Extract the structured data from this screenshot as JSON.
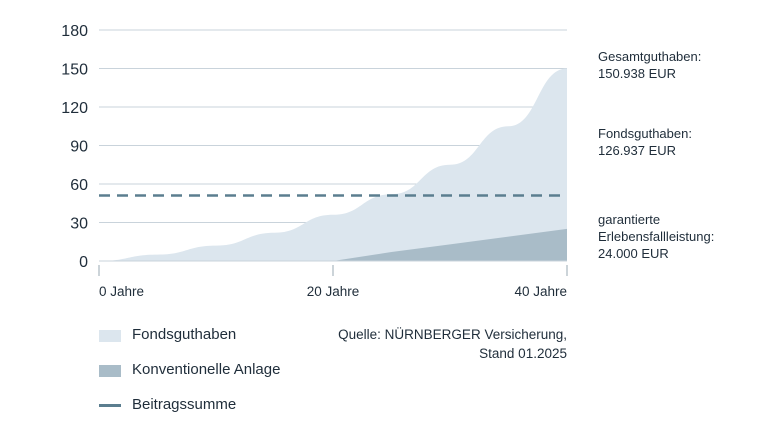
{
  "chart_data": {
    "type": "area",
    "ylim": [
      0,
      180
    ],
    "yticks": [
      0,
      30,
      60,
      90,
      120,
      150,
      180
    ],
    "xlim": [
      0,
      40
    ],
    "xticks": [
      {
        "value": 0,
        "label": "0 Jahre"
      },
      {
        "value": 20,
        "label": "20 Jahre"
      },
      {
        "value": 40,
        "label": "40 Jahre"
      }
    ],
    "grid": true,
    "series": [
      {
        "name": "Fondsguthaben",
        "type": "area",
        "color": "#dce6ee",
        "x": [
          0,
          5,
          10,
          15,
          20,
          25,
          30,
          35,
          40
        ],
        "values": [
          0,
          5,
          12,
          22,
          36,
          52,
          75,
          105,
          150
        ]
      },
      {
        "name": "Konventionelle Anlage",
        "type": "area",
        "color": "#a9bcc8",
        "x": [
          0,
          20,
          25,
          30,
          35,
          40
        ],
        "values": [
          0,
          0,
          7,
          13,
          19,
          25
        ]
      },
      {
        "name": "Beitragssumme",
        "type": "dashed-line",
        "color": "#5b7e8f",
        "x": [
          0,
          40
        ],
        "values": [
          51,
          51
        ]
      }
    ]
  },
  "annotations": [
    {
      "label": "Gesamtguthaben:",
      "value": "150.938 EUR"
    },
    {
      "label": "Fondsguthaben:",
      "value": "126.937 EUR"
    },
    {
      "label": "garantierte",
      "label2": "Erlebensfallleistung:",
      "value": "24.000 EUR"
    }
  ],
  "legend": [
    {
      "label": "Fondsguthaben",
      "color": "#dce6ee"
    },
    {
      "label": "Konventionelle Anlage",
      "color": "#a9bcc8"
    },
    {
      "label": "Beitragssumme",
      "color": "#5b7e8f"
    }
  ],
  "source": {
    "line1": "Quelle: NÜRNBERGER Versicherung,",
    "line2": "Stand 01.2025"
  }
}
